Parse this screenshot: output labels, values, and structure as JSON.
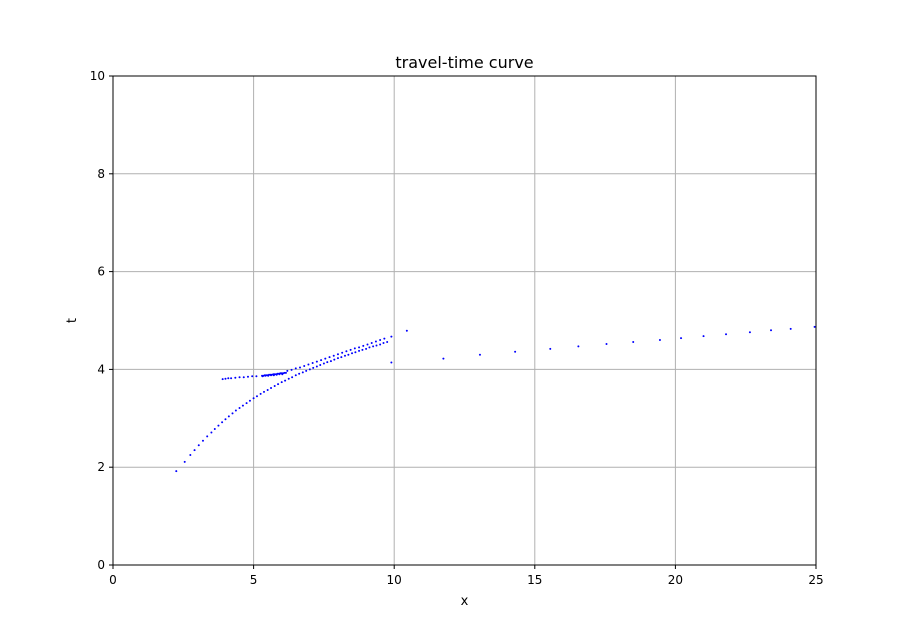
{
  "chart_data": {
    "type": "scatter",
    "title": "travel-time curve",
    "xlabel": "x",
    "ylabel": "t",
    "xlim": [
      0,
      25
    ],
    "ylim": [
      0,
      10
    ],
    "xticks": [
      0,
      5,
      10,
      15,
      20,
      25
    ],
    "yticks": [
      0,
      2,
      4,
      6,
      8,
      10
    ],
    "xtick_labels": [
      "0",
      "5",
      "10",
      "15",
      "20",
      "25"
    ],
    "ytick_labels": [
      "0",
      "2",
      "4",
      "6",
      "8",
      "10"
    ],
    "grid": true,
    "legend": "none",
    "marker_color": "#0000ff",
    "series": [
      {
        "points": [
          [
            2.25,
            1.92
          ],
          [
            2.55,
            2.11
          ],
          [
            2.75,
            2.25
          ],
          [
            2.9,
            2.35
          ],
          [
            3.05,
            2.45
          ],
          [
            3.2,
            2.54
          ],
          [
            3.35,
            2.63
          ],
          [
            3.5,
            2.71
          ],
          [
            3.62,
            2.78
          ],
          [
            3.75,
            2.85
          ],
          [
            3.88,
            2.92
          ],
          [
            4.0,
            2.98
          ],
          [
            4.12,
            3.04
          ],
          [
            4.25,
            3.1
          ],
          [
            4.37,
            3.16
          ],
          [
            4.5,
            3.21
          ],
          [
            4.62,
            3.26
          ],
          [
            4.75,
            3.31
          ],
          [
            4.87,
            3.36
          ],
          [
            5.0,
            3.41
          ],
          [
            5.12,
            3.45
          ],
          [
            5.25,
            3.5
          ],
          [
            5.37,
            3.54
          ],
          [
            5.5,
            3.58
          ],
          [
            5.62,
            3.62
          ],
          [
            5.75,
            3.66
          ],
          [
            5.87,
            3.7
          ],
          [
            6.0,
            3.74
          ],
          [
            6.12,
            3.77
          ],
          [
            6.25,
            3.81
          ],
          [
            6.37,
            3.84
          ],
          [
            6.5,
            3.88
          ],
          [
            6.62,
            3.91
          ],
          [
            6.75,
            3.94
          ],
          [
            6.87,
            3.97
          ],
          [
            7.0,
            4.0
          ],
          [
            7.12,
            4.03
          ],
          [
            7.25,
            4.06
          ],
          [
            7.37,
            4.09
          ],
          [
            7.5,
            4.12
          ],
          [
            7.62,
            4.15
          ],
          [
            7.75,
            4.17
          ],
          [
            7.87,
            4.2
          ],
          [
            8.0,
            4.23
          ],
          [
            8.12,
            4.25
          ],
          [
            8.25,
            4.28
          ],
          [
            8.37,
            4.3
          ],
          [
            8.5,
            4.33
          ],
          [
            8.62,
            4.35
          ],
          [
            8.75,
            4.38
          ],
          [
            8.87,
            4.4
          ],
          [
            9.0,
            4.42
          ],
          [
            9.12,
            4.45
          ],
          [
            9.25,
            4.47
          ],
          [
            9.37,
            4.49
          ],
          [
            9.5,
            4.51
          ],
          [
            9.62,
            4.54
          ],
          [
            9.75,
            4.56
          ],
          [
            3.9,
            3.8
          ],
          [
            4.0,
            3.81
          ],
          [
            4.1,
            3.82
          ],
          [
            4.2,
            3.82
          ],
          [
            4.35,
            3.83
          ],
          [
            4.5,
            3.84
          ],
          [
            4.65,
            3.84
          ],
          [
            4.8,
            3.85
          ],
          [
            4.95,
            3.86
          ],
          [
            5.1,
            3.86
          ],
          [
            5.3,
            3.87
          ],
          [
            5.35,
            3.87
          ],
          [
            5.4,
            3.88
          ],
          [
            5.45,
            3.88
          ],
          [
            5.5,
            3.88
          ],
          [
            5.55,
            3.89
          ],
          [
            5.6,
            3.89
          ],
          [
            5.65,
            3.89
          ],
          [
            5.7,
            3.9
          ],
          [
            5.75,
            3.9
          ],
          [
            5.8,
            3.9
          ],
          [
            5.85,
            3.91
          ],
          [
            5.9,
            3.91
          ],
          [
            5.95,
            3.92
          ],
          [
            6.0,
            3.92
          ],
          [
            6.05,
            3.92
          ],
          [
            6.1,
            3.93
          ],
          [
            6.15,
            3.93
          ],
          [
            5.32,
            3.86
          ],
          [
            5.42,
            3.87
          ],
          [
            5.52,
            3.87
          ],
          [
            5.62,
            3.88
          ],
          [
            5.72,
            3.88
          ],
          [
            5.82,
            3.89
          ],
          [
            5.92,
            3.9
          ],
          [
            6.02,
            3.9
          ],
          [
            6.2,
            3.97
          ],
          [
            6.35,
            3.99
          ],
          [
            6.5,
            4.02
          ],
          [
            6.65,
            4.04
          ],
          [
            6.8,
            4.07
          ],
          [
            6.95,
            4.1
          ],
          [
            7.1,
            4.13
          ],
          [
            7.25,
            4.16
          ],
          [
            7.4,
            4.19
          ],
          [
            7.55,
            4.22
          ],
          [
            7.7,
            4.25
          ],
          [
            7.85,
            4.28
          ],
          [
            8.0,
            4.31
          ],
          [
            8.15,
            4.34
          ],
          [
            8.3,
            4.37
          ],
          [
            8.45,
            4.4
          ],
          [
            8.6,
            4.43
          ],
          [
            8.75,
            4.45
          ],
          [
            8.9,
            4.48
          ],
          [
            9.05,
            4.51
          ],
          [
            9.2,
            4.54
          ],
          [
            9.35,
            4.57
          ],
          [
            9.5,
            4.6
          ],
          [
            9.65,
            4.63
          ],
          [
            9.9,
            4.67
          ],
          [
            10.45,
            4.79
          ],
          [
            9.9,
            4.14
          ],
          [
            11.75,
            4.22
          ],
          [
            13.05,
            4.3
          ],
          [
            14.3,
            4.36
          ],
          [
            15.55,
            4.42
          ],
          [
            16.55,
            4.47
          ],
          [
            17.55,
            4.52
          ],
          [
            18.5,
            4.56
          ],
          [
            19.45,
            4.6
          ],
          [
            20.2,
            4.64
          ],
          [
            21.0,
            4.68
          ],
          [
            21.8,
            4.72
          ],
          [
            22.65,
            4.76
          ],
          [
            23.4,
            4.8
          ],
          [
            24.1,
            4.83
          ],
          [
            24.95,
            4.87
          ]
        ]
      }
    ]
  }
}
